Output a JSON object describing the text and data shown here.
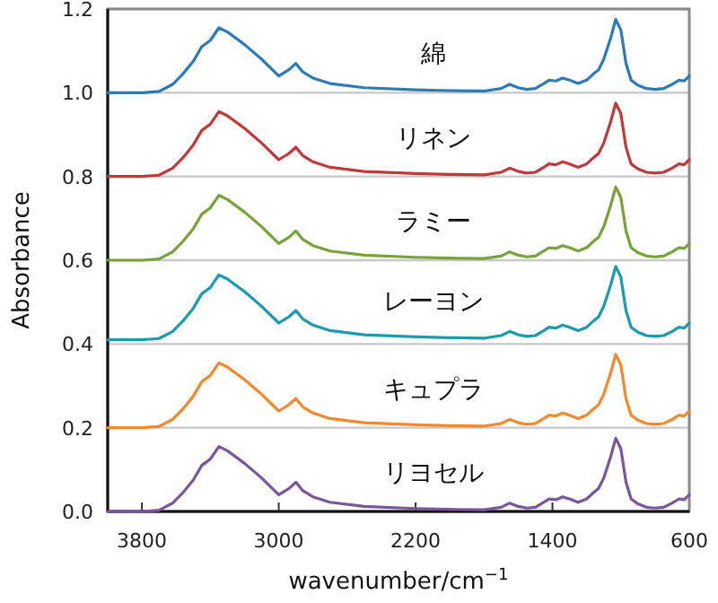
{
  "chart_data": {
    "type": "line",
    "xlabel": "wavenumber/cm$^{−1}$",
    "ylabel": "Absorbance",
    "xlim": [
      4000,
      600
    ],
    "xticks": [
      3800,
      3000,
      2200,
      1400,
      600
    ],
    "ylim": [
      0,
      1.2
    ],
    "yticks": [
      {
        "value": 0,
        "label": "0.0"
      },
      {
        "value": 0.2,
        "label": "0.2"
      },
      {
        "value": 0.4,
        "label": "0.4"
      },
      {
        "value": 0.6,
        "label": "0.6"
      },
      {
        "value": 0.8,
        "label": "0.8"
      },
      {
        "value": 1.0,
        "label": "1.0"
      },
      {
        "value": 1.2,
        "label": "1.2"
      }
    ],
    "grid": "y",
    "x": [
      4000,
      3800,
      3700,
      3620,
      3560,
      3500,
      3450,
      3400,
      3350,
      3300,
      3200,
      3100,
      3000,
      2940,
      2900,
      2860,
      2800,
      2700,
      2500,
      2200,
      2000,
      1800,
      1700,
      1650,
      1600,
      1550,
      1500,
      1450,
      1420,
      1380,
      1340,
      1300,
      1250,
      1200,
      1160,
      1130,
      1100,
      1060,
      1030,
      1000,
      970,
      940,
      900,
      850,
      800,
      750,
      700,
      660,
      630,
      600
    ],
    "series": [
      {
        "name": "綿",
        "color": "#2b7bb9",
        "values": [
          1.0,
          1.0,
          1.003,
          1.02,
          1.045,
          1.075,
          1.11,
          1.125,
          1.155,
          1.145,
          1.115,
          1.08,
          1.04,
          1.055,
          1.07,
          1.05,
          1.035,
          1.022,
          1.012,
          1.007,
          1.005,
          1.004,
          1.01,
          1.02,
          1.012,
          1.008,
          1.01,
          1.022,
          1.03,
          1.028,
          1.035,
          1.03,
          1.022,
          1.03,
          1.045,
          1.055,
          1.08,
          1.13,
          1.175,
          1.15,
          1.07,
          1.03,
          1.018,
          1.01,
          1.008,
          1.01,
          1.02,
          1.03,
          1.028,
          1.04
        ]
      },
      {
        "name": "リネン",
        "color": "#c0393b",
        "values": [
          0.8,
          0.8,
          0.803,
          0.82,
          0.845,
          0.875,
          0.91,
          0.925,
          0.955,
          0.945,
          0.915,
          0.88,
          0.84,
          0.855,
          0.87,
          0.85,
          0.835,
          0.822,
          0.812,
          0.807,
          0.805,
          0.804,
          0.81,
          0.82,
          0.812,
          0.808,
          0.81,
          0.822,
          0.83,
          0.828,
          0.835,
          0.83,
          0.822,
          0.83,
          0.845,
          0.855,
          0.88,
          0.93,
          0.975,
          0.95,
          0.87,
          0.83,
          0.818,
          0.81,
          0.808,
          0.81,
          0.82,
          0.83,
          0.828,
          0.84
        ]
      },
      {
        "name": "ラミー",
        "color": "#77a33a",
        "values": [
          0.6,
          0.6,
          0.603,
          0.62,
          0.645,
          0.675,
          0.71,
          0.725,
          0.755,
          0.745,
          0.715,
          0.68,
          0.64,
          0.655,
          0.67,
          0.65,
          0.635,
          0.622,
          0.612,
          0.607,
          0.605,
          0.604,
          0.61,
          0.62,
          0.612,
          0.608,
          0.61,
          0.622,
          0.63,
          0.628,
          0.635,
          0.63,
          0.622,
          0.63,
          0.645,
          0.655,
          0.68,
          0.73,
          0.775,
          0.75,
          0.67,
          0.63,
          0.618,
          0.61,
          0.608,
          0.61,
          0.62,
          0.63,
          0.628,
          0.64
        ]
      },
      {
        "name": "レーヨン",
        "color": "#1a9bb0",
        "values": [
          0.41,
          0.41,
          0.413,
          0.43,
          0.455,
          0.485,
          0.52,
          0.535,
          0.565,
          0.555,
          0.525,
          0.49,
          0.45,
          0.465,
          0.48,
          0.46,
          0.445,
          0.432,
          0.422,
          0.417,
          0.415,
          0.414,
          0.42,
          0.43,
          0.422,
          0.418,
          0.42,
          0.432,
          0.44,
          0.438,
          0.445,
          0.44,
          0.432,
          0.44,
          0.455,
          0.465,
          0.49,
          0.54,
          0.585,
          0.56,
          0.48,
          0.44,
          0.428,
          0.42,
          0.418,
          0.42,
          0.43,
          0.44,
          0.438,
          0.45
        ]
      },
      {
        "name": "キュプラ",
        "color": "#f08a2c",
        "values": [
          0.2,
          0.2,
          0.203,
          0.22,
          0.245,
          0.275,
          0.31,
          0.325,
          0.355,
          0.345,
          0.315,
          0.28,
          0.24,
          0.255,
          0.27,
          0.25,
          0.235,
          0.222,
          0.212,
          0.207,
          0.205,
          0.204,
          0.21,
          0.22,
          0.212,
          0.208,
          0.21,
          0.222,
          0.23,
          0.228,
          0.235,
          0.23,
          0.222,
          0.23,
          0.245,
          0.255,
          0.28,
          0.33,
          0.375,
          0.35,
          0.27,
          0.23,
          0.218,
          0.21,
          0.208,
          0.21,
          0.22,
          0.23,
          0.228,
          0.24
        ]
      },
      {
        "name": "リヨセル",
        "color": "#7b559c",
        "values": [
          0.0,
          0.0,
          0.003,
          0.02,
          0.045,
          0.075,
          0.11,
          0.125,
          0.155,
          0.145,
          0.115,
          0.08,
          0.04,
          0.055,
          0.07,
          0.05,
          0.035,
          0.022,
          0.012,
          0.007,
          0.005,
          0.004,
          0.01,
          0.02,
          0.012,
          0.008,
          0.01,
          0.022,
          0.03,
          0.028,
          0.035,
          0.03,
          0.022,
          0.03,
          0.045,
          0.055,
          0.08,
          0.13,
          0.175,
          0.15,
          0.07,
          0.03,
          0.018,
          0.01,
          0.008,
          0.01,
          0.02,
          0.03,
          0.028,
          0.04
        ]
      }
    ]
  }
}
